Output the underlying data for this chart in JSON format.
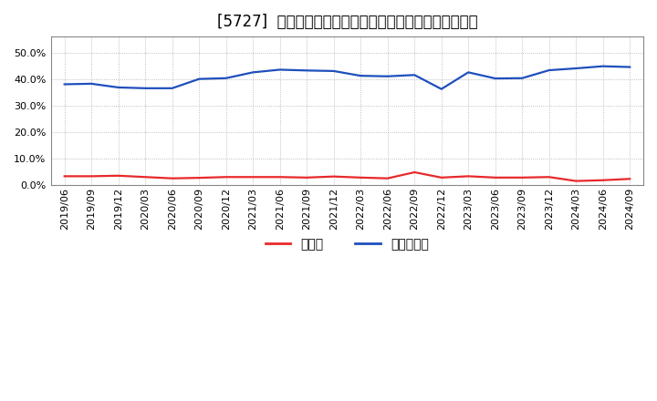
{
  "title": "[5727]  現預金、有利子負債の総資産に対する比率の推移",
  "x_labels": [
    "2019/06",
    "2019/09",
    "2019/12",
    "2020/03",
    "2020/06",
    "2020/09",
    "2020/12",
    "2021/03",
    "2021/06",
    "2021/09",
    "2021/12",
    "2022/03",
    "2022/06",
    "2022/09",
    "2022/12",
    "2023/03",
    "2023/06",
    "2023/09",
    "2023/12",
    "2024/03",
    "2024/06",
    "2024/09"
  ],
  "cash": [
    0.033,
    0.033,
    0.035,
    0.03,
    0.025,
    0.027,
    0.03,
    0.03,
    0.03,
    0.028,
    0.032,
    0.028,
    0.025,
    0.048,
    0.028,
    0.033,
    0.028,
    0.028,
    0.03,
    0.015,
    0.018,
    0.023
  ],
  "debt": [
    0.38,
    0.382,
    0.368,
    0.365,
    0.365,
    0.4,
    0.403,
    0.425,
    0.435,
    0.432,
    0.43,
    0.412,
    0.41,
    0.415,
    0.362,
    0.425,
    0.402,
    0.403,
    0.433,
    0.44,
    0.448,
    0.445
  ],
  "cash_color": "#e8292a",
  "debt_color": "#1f4fbd",
  "background_color": "#ffffff",
  "plot_bg_color": "#ffffff",
  "grid_color": "#aaaaaa",
  "ylim": [
    0.0,
    0.56
  ],
  "yticks": [
    0.0,
    0.1,
    0.2,
    0.3,
    0.4,
    0.5
  ],
  "legend_cash": "現預金",
  "legend_debt": "有利子負債",
  "title_fontsize": 12,
  "tick_fontsize": 8,
  "line_width": 1.6
}
